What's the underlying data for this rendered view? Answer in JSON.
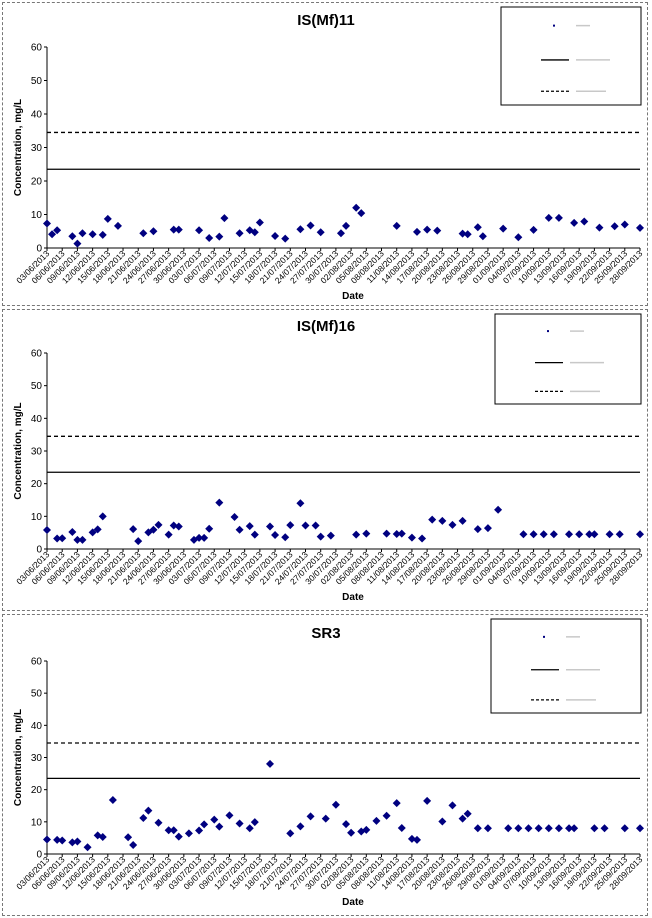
{
  "chart_data": [
    {
      "type": "scatter",
      "title": "IS(Mf)11",
      "xlabel": "Date",
      "ylabel": "Concentration, mg/L",
      "ylim": [
        0,
        60
      ],
      "yticks": [
        0,
        10,
        20,
        30,
        40,
        50,
        60
      ],
      "x_tick_labels": [
        "03/06/2013",
        "06/06/2013",
        "09/06/2013",
        "12/06/2013",
        "15/06/2013",
        "18/06/2013",
        "21/06/2013",
        "24/06/2013",
        "27/06/2013",
        "30/06/2013",
        "03/07/2013",
        "06/07/2013",
        "09/07/2013",
        "12/07/2013",
        "15/07/2013",
        "18/07/2013",
        "21/07/2013",
        "24/07/2013",
        "27/07/2013",
        "30/07/2013",
        "02/08/2013",
        "05/08/2013",
        "08/08/2013",
        "11/08/2013",
        "14/08/2013",
        "17/08/2013",
        "20/08/2013",
        "23/08/2013",
        "26/08/2013",
        "29/08/2013",
        "01/09/2013",
        "04/09/2013",
        "07/09/2013",
        "10/09/2013",
        "13/09/2013",
        "16/09/2013",
        "19/09/2013",
        "22/09/2013",
        "25/09/2013",
        "28/09/2013"
      ],
      "lines": [
        {
          "value": 23.5,
          "style": "solid"
        },
        {
          "value": 34.5,
          "style": "dashed"
        }
      ],
      "legend_position": "top-right",
      "marker_color": "#000080",
      "series": [
        {
          "x": [
            "03/06/2013",
            "04/06/2013",
            "05/06/2013",
            "08/06/2013",
            "09/06/2013",
            "10/06/2013",
            "12/06/2013",
            "14/06/2013",
            "15/06/2013",
            "17/06/2013",
            "22/06/2013",
            "24/06/2013",
            "28/06/2013",
            "29/06/2013",
            "03/07/2013",
            "05/07/2013",
            "07/07/2013",
            "08/07/2013",
            "11/07/2013",
            "13/07/2013",
            "14/07/2013",
            "15/07/2013",
            "18/07/2013",
            "20/07/2013",
            "23/07/2013",
            "25/07/2013",
            "27/07/2013",
            "31/07/2013",
            "01/08/2013",
            "03/08/2013",
            "04/08/2013",
            "11/08/2013",
            "15/08/2013",
            "17/08/2013",
            "19/08/2013",
            "24/08/2013",
            "25/08/2013",
            "27/08/2013",
            "28/08/2013",
            "01/09/2013",
            "04/09/2013",
            "07/09/2013",
            "10/09/2013",
            "12/09/2013",
            "15/09/2013",
            "17/09/2013",
            "20/09/2013",
            "23/09/2013",
            "25/09/2013",
            "28/09/2013"
          ],
          "values": [
            7.3,
            4.1,
            5.3,
            3.5,
            1.3,
            4.4,
            4.1,
            3.9,
            8.7,
            6.6,
            4.4,
            5.0,
            5.5,
            5.5,
            5.3,
            3.0,
            3.4,
            8.9,
            4.4,
            5.3,
            4.7,
            7.6,
            3.6,
            2.8,
            5.6,
            6.7,
            4.7,
            4.4,
            6.6,
            12.0,
            10.4,
            6.6,
            4.8,
            5.5,
            5.2,
            4.3,
            4.1,
            6.2,
            3.5,
            5.8,
            3.2,
            5.4,
            9.0,
            9.0,
            7.5,
            7.9,
            6.1,
            6.5,
            7.0,
            6.0
          ]
        }
      ],
      "legend": []
    },
    {
      "type": "scatter",
      "title": "IS(Mf)16",
      "xlabel": "Date",
      "ylabel": "Concentration, mg/L",
      "ylim": [
        0,
        60
      ],
      "yticks": [
        0,
        10,
        20,
        30,
        40,
        50,
        60
      ],
      "x_tick_labels": [
        "03/06/2013",
        "06/06/2013",
        "09/06/2013",
        "12/06/2013",
        "15/06/2013",
        "18/06/2013",
        "21/06/2013",
        "24/06/2013",
        "27/06/2013",
        "30/06/2013",
        "03/07/2013",
        "06/07/2013",
        "09/07/2013",
        "12/07/2013",
        "15/07/2013",
        "18/07/2013",
        "21/07/2013",
        "24/07/2013",
        "27/07/2013",
        "30/07/2013",
        "02/08/2013",
        "05/08/2013",
        "08/08/2013",
        "11/08/2013",
        "14/08/2013",
        "17/08/2013",
        "20/08/2013",
        "23/08/2013",
        "26/08/2013",
        "29/08/2013",
        "01/09/2013",
        "04/09/2013",
        "07/09/2013",
        "10/09/2013",
        "13/09/2013",
        "16/09/2013",
        "19/09/2013",
        "22/09/2013",
        "25/09/2013",
        "28/09/2013"
      ],
      "lines": [
        {
          "value": 23.5,
          "style": "solid"
        },
        {
          "value": 34.5,
          "style": "dashed"
        }
      ],
      "legend_position": "top-right",
      "marker_color": "#000080",
      "series": [
        {
          "x": [
            "03/06/2013",
            "05/06/2013",
            "06/06/2013",
            "08/06/2013",
            "09/06/2013",
            "10/06/2013",
            "12/06/2013",
            "13/06/2013",
            "14/06/2013",
            "20/06/2013",
            "21/06/2013",
            "23/06/2013",
            "24/06/2013",
            "25/06/2013",
            "27/06/2013",
            "28/06/2013",
            "29/06/2013",
            "02/07/2013",
            "03/07/2013",
            "04/07/2013",
            "05/07/2013",
            "07/07/2013",
            "10/07/2013",
            "11/07/2013",
            "13/07/2013",
            "14/07/2013",
            "17/07/2013",
            "18/07/2013",
            "20/07/2013",
            "21/07/2013",
            "23/07/2013",
            "24/07/2013",
            "26/07/2013",
            "27/07/2013",
            "29/07/2013",
            "03/08/2013",
            "05/08/2013",
            "09/08/2013",
            "11/08/2013",
            "12/08/2013",
            "14/08/2013",
            "16/08/2013",
            "18/08/2013",
            "20/08/2013",
            "22/08/2013",
            "24/08/2013",
            "27/08/2013",
            "29/08/2013",
            "31/08/2013",
            "05/09/2013",
            "07/09/2013",
            "09/09/2013",
            "11/09/2013",
            "14/09/2013",
            "16/09/2013",
            "18/09/2013",
            "19/09/2013",
            "22/09/2013",
            "24/09/2013",
            "28/09/2013"
          ],
          "values": [
            5.8,
            3.2,
            3.3,
            5.2,
            2.8,
            2.8,
            5.1,
            6.0,
            10.0,
            6.1,
            2.4,
            5.1,
            5.9,
            7.4,
            4.4,
            7.2,
            6.9,
            2.8,
            3.4,
            3.4,
            6.2,
            14.2,
            9.8,
            5.9,
            7.0,
            4.4,
            6.9,
            4.3,
            3.6,
            7.3,
            14.0,
            7.2,
            7.2,
            3.8,
            4.1,
            4.4,
            4.7,
            4.7,
            4.6,
            4.7,
            3.5,
            3.2,
            9.0,
            8.6,
            7.4,
            8.6,
            6.1,
            6.4,
            12.0,
            4.5,
            4.5,
            4.5,
            4.5,
            4.5,
            4.5,
            4.5,
            4.5,
            4.5,
            4.5,
            4.5
          ]
        }
      ],
      "legend": []
    },
    {
      "type": "scatter",
      "title": "SR3",
      "xlabel": "Date",
      "ylabel": "Concentration, mg/L",
      "ylim": [
        0,
        60
      ],
      "yticks": [
        0,
        10,
        20,
        30,
        40,
        50,
        60
      ],
      "x_tick_labels": [
        "03/06/2013",
        "06/06/2013",
        "09/06/2013",
        "12/06/2013",
        "15/06/2013",
        "18/06/2013",
        "21/06/2013",
        "24/06/2013",
        "27/06/2013",
        "30/06/2013",
        "03/07/2013",
        "06/07/2013",
        "09/07/2013",
        "12/07/2013",
        "15/07/2013",
        "18/07/2013",
        "21/07/2013",
        "24/07/2013",
        "27/07/2013",
        "30/07/2013",
        "02/08/2013",
        "05/08/2013",
        "08/08/2013",
        "11/08/2013",
        "14/08/2013",
        "17/08/2013",
        "20/08/2013",
        "23/08/2013",
        "26/08/2013",
        "29/08/2013",
        "01/09/2013",
        "04/09/2013",
        "07/09/2013",
        "10/09/2013",
        "13/09/2013",
        "16/09/2013",
        "19/09/2013",
        "22/09/2013",
        "25/09/2013",
        "28/09/2013"
      ],
      "lines": [
        {
          "value": 23.5,
          "style": "solid"
        },
        {
          "value": 34.5,
          "style": "dashed"
        }
      ],
      "legend_position": "top-right",
      "marker_color": "#000080",
      "series": [
        {
          "x": [
            "03/06/2013",
            "05/06/2013",
            "06/06/2013",
            "08/06/2013",
            "09/06/2013",
            "11/06/2013",
            "13/06/2013",
            "14/06/2013",
            "16/06/2013",
            "19/06/2013",
            "20/06/2013",
            "22/06/2013",
            "23/06/2013",
            "25/06/2013",
            "27/06/2013",
            "28/06/2013",
            "29/06/2013",
            "01/07/2013",
            "03/07/2013",
            "04/07/2013",
            "06/07/2013",
            "07/07/2013",
            "09/07/2013",
            "11/07/2013",
            "13/07/2013",
            "14/07/2013",
            "17/07/2013",
            "21/07/2013",
            "23/07/2013",
            "25/07/2013",
            "28/07/2013",
            "30/07/2013",
            "01/08/2013",
            "02/08/2013",
            "04/08/2013",
            "05/08/2013",
            "07/08/2013",
            "09/08/2013",
            "11/08/2013",
            "12/08/2013",
            "14/08/2013",
            "15/08/2013",
            "17/08/2013",
            "20/08/2013",
            "22/08/2013",
            "24/08/2013",
            "25/08/2013",
            "27/08/2013",
            "29/08/2013",
            "02/09/2013",
            "04/09/2013",
            "06/09/2013",
            "08/09/2013",
            "10/09/2013",
            "12/09/2013",
            "14/09/2013",
            "15/09/2013",
            "19/09/2013",
            "21/09/2013",
            "25/09/2013",
            "28/09/2013"
          ],
          "values": [
            4.5,
            4.4,
            4.2,
            3.6,
            3.9,
            2.1,
            5.8,
            5.3,
            16.8,
            5.2,
            2.8,
            11.2,
            13.5,
            9.7,
            7.4,
            7.4,
            5.4,
            6.4,
            7.3,
            9.2,
            10.7,
            8.5,
            12.0,
            9.5,
            8.0,
            9.9,
            28.0,
            6.4,
            8.6,
            11.7,
            11.0,
            15.3,
            9.3,
            6.6,
            7.0,
            7.5,
            10.3,
            11.9,
            15.8,
            8.1,
            4.7,
            4.4,
            16.5,
            10.1,
            15.1,
            11.0,
            12.5,
            8.0,
            8.0,
            8.0,
            8.0,
            8.0,
            8.0,
            8.0,
            8.0,
            8.0,
            8.0,
            8.0,
            8.0,
            8.0,
            8.0
          ]
        }
      ],
      "legend": []
    }
  ]
}
